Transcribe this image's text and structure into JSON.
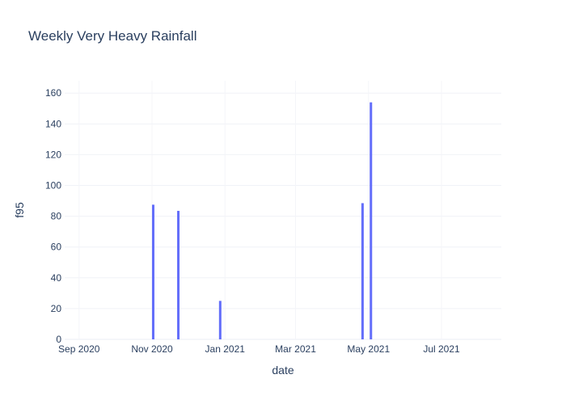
{
  "chart_data": {
    "type": "bar",
    "title": "Weekly Very Heavy Rainfall",
    "xlabel": "date",
    "ylabel": "f95",
    "x_tick_labels": [
      "Sep 2020",
      "Nov 2020",
      "Jan 2021",
      "Mar 2021",
      "May 2021",
      "Jul 2021"
    ],
    "x_tick_dates": [
      "2020-09-01",
      "2020-11-01",
      "2021-01-01",
      "2021-03-01",
      "2021-05-01",
      "2021-07-01"
    ],
    "xlim": [
      "2020-08-20",
      "2021-08-20"
    ],
    "y_ticks": [
      0,
      20,
      40,
      60,
      80,
      100,
      120,
      140,
      160
    ],
    "ylim": [
      0,
      168
    ],
    "grid": true,
    "bar_color": "#636efa",
    "bars": [
      {
        "date": "2020-11-02",
        "value": 87.5
      },
      {
        "date": "2020-11-23",
        "value": 83.5
      },
      {
        "date": "2020-12-28",
        "value": 25
      },
      {
        "date": "2021-04-26",
        "value": 88.5
      },
      {
        "date": "2021-05-03",
        "value": 154
      }
    ]
  }
}
